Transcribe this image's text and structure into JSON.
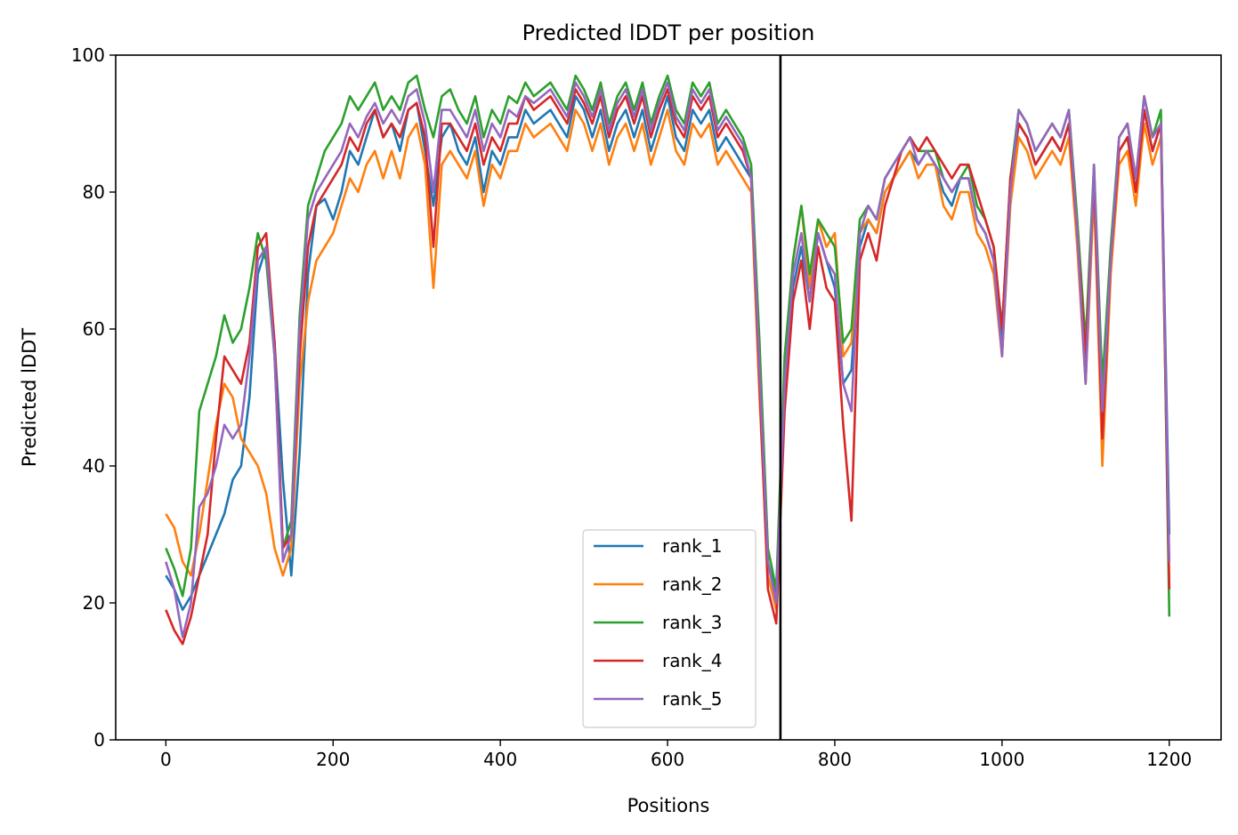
{
  "chart_data": {
    "type": "line",
    "title": "Predicted lDDT per position",
    "xlabel": "Positions",
    "ylabel": "Predicted lDDT",
    "xlim": [
      -60,
      1262
    ],
    "ylim": [
      0,
      100
    ],
    "xticks": [
      0,
      200,
      400,
      600,
      800,
      1000,
      1200
    ],
    "yticks": [
      0,
      20,
      40,
      60,
      80,
      100
    ],
    "grid": false,
    "legend_position": "lower center",
    "vline": 735,
    "x": [
      0,
      10,
      20,
      30,
      40,
      50,
      60,
      70,
      80,
      90,
      100,
      110,
      120,
      130,
      140,
      150,
      160,
      170,
      180,
      190,
      200,
      210,
      220,
      230,
      240,
      250,
      260,
      270,
      280,
      290,
      300,
      310,
      320,
      330,
      340,
      350,
      360,
      370,
      380,
      390,
      400,
      410,
      420,
      430,
      440,
      450,
      460,
      470,
      480,
      490,
      500,
      510,
      520,
      530,
      540,
      550,
      560,
      570,
      580,
      590,
      600,
      610,
      620,
      630,
      640,
      650,
      660,
      670,
      680,
      690,
      700,
      710,
      720,
      730,
      740,
      750,
      760,
      770,
      780,
      790,
      800,
      810,
      820,
      830,
      840,
      850,
      860,
      870,
      880,
      890,
      900,
      910,
      920,
      930,
      940,
      950,
      960,
      970,
      980,
      990,
      1000,
      1010,
      1020,
      1030,
      1040,
      1050,
      1060,
      1070,
      1080,
      1090,
      1100,
      1110,
      1120,
      1130,
      1140,
      1150,
      1160,
      1170,
      1180,
      1190,
      1200
    ],
    "series": [
      {
        "name": "rank_1",
        "color": "#1f77b4",
        "values": [
          24,
          22,
          19,
          21,
          24,
          27,
          30,
          33,
          38,
          40,
          50,
          68,
          72,
          58,
          38,
          24,
          42,
          68,
          78,
          79,
          76,
          80,
          86,
          84,
          88,
          92,
          88,
          90,
          86,
          92,
          93,
          86,
          78,
          88,
          90,
          86,
          84,
          88,
          80,
          86,
          84,
          88,
          88,
          92,
          90,
          91,
          92,
          90,
          88,
          94,
          92,
          88,
          92,
          86,
          90,
          92,
          88,
          92,
          86,
          90,
          94,
          88,
          86,
          92,
          90,
          92,
          86,
          88,
          86,
          84,
          82,
          56,
          26,
          21,
          50,
          66,
          72,
          64,
          74,
          70,
          66,
          52,
          54,
          72,
          76,
          74,
          80,
          82,
          84,
          86,
          84,
          86,
          84,
          80,
          78,
          82,
          82,
          76,
          74,
          70,
          58,
          80,
          90,
          88,
          84,
          86,
          88,
          86,
          90,
          74,
          56,
          82,
          50,
          70,
          86,
          88,
          80,
          92,
          86,
          90,
          30
        ]
      },
      {
        "name": "rank_2",
        "color": "#ff7f0e",
        "values": [
          33,
          31,
          26,
          24,
          30,
          38,
          46,
          52,
          50,
          44,
          42,
          40,
          36,
          28,
          24,
          28,
          52,
          64,
          70,
          72,
          74,
          78,
          82,
          80,
          84,
          86,
          82,
          86,
          82,
          88,
          90,
          84,
          66,
          84,
          86,
          84,
          82,
          86,
          78,
          84,
          82,
          86,
          86,
          90,
          88,
          89,
          90,
          88,
          86,
          92,
          90,
          86,
          90,
          84,
          88,
          90,
          86,
          90,
          84,
          88,
          92,
          86,
          84,
          90,
          88,
          90,
          84,
          86,
          84,
          82,
          80,
          50,
          24,
          19,
          54,
          70,
          78,
          66,
          76,
          72,
          74,
          56,
          58,
          74,
          76,
          74,
          80,
          82,
          84,
          86,
          82,
          84,
          84,
          78,
          76,
          80,
          80,
          74,
          72,
          68,
          56,
          78,
          88,
          86,
          82,
          84,
          86,
          84,
          88,
          72,
          52,
          80,
          40,
          68,
          84,
          86,
          78,
          90,
          84,
          88,
          22
        ]
      },
      {
        "name": "rank_3",
        "color": "#2ca02c",
        "values": [
          28,
          25,
          21,
          28,
          48,
          52,
          56,
          62,
          58,
          60,
          66,
          74,
          70,
          56,
          28,
          32,
          62,
          78,
          82,
          86,
          88,
          90,
          94,
          92,
          94,
          96,
          92,
          94,
          92,
          96,
          97,
          92,
          88,
          94,
          95,
          92,
          90,
          94,
          88,
          92,
          90,
          94,
          93,
          96,
          94,
          95,
          96,
          94,
          92,
          97,
          95,
          92,
          96,
          90,
          94,
          96,
          92,
          96,
          90,
          94,
          97,
          92,
          90,
          96,
          94,
          96,
          90,
          92,
          90,
          88,
          84,
          58,
          28,
          22,
          56,
          70,
          78,
          68,
          76,
          74,
          72,
          58,
          60,
          76,
          78,
          76,
          82,
          84,
          86,
          88,
          86,
          86,
          86,
          82,
          80,
          82,
          84,
          78,
          76,
          72,
          60,
          82,
          92,
          90,
          86,
          88,
          90,
          88,
          92,
          76,
          58,
          84,
          52,
          72,
          88,
          90,
          82,
          94,
          88,
          92,
          18
        ]
      },
      {
        "name": "rank_4",
        "color": "#d62728",
        "values": [
          19,
          16,
          14,
          18,
          24,
          30,
          44,
          56,
          54,
          52,
          58,
          72,
          74,
          58,
          28,
          30,
          56,
          72,
          78,
          80,
          82,
          84,
          88,
          86,
          90,
          92,
          88,
          90,
          88,
          92,
          93,
          88,
          72,
          90,
          90,
          88,
          86,
          90,
          84,
          88,
          86,
          90,
          90,
          94,
          92,
          93,
          94,
          92,
          90,
          95,
          93,
          90,
          94,
          88,
          92,
          94,
          90,
          94,
          88,
          92,
          95,
          90,
          88,
          94,
          92,
          94,
          88,
          90,
          88,
          86,
          82,
          52,
          22,
          17,
          48,
          64,
          70,
          60,
          72,
          66,
          64,
          46,
          32,
          70,
          74,
          70,
          78,
          82,
          86,
          88,
          86,
          88,
          86,
          84,
          82,
          84,
          84,
          80,
          76,
          72,
          60,
          82,
          90,
          88,
          84,
          86,
          88,
          86,
          90,
          74,
          56,
          82,
          44,
          70,
          86,
          88,
          80,
          92,
          86,
          90,
          22
        ]
      },
      {
        "name": "rank_5",
        "color": "#9467bd",
        "values": [
          26,
          22,
          15,
          20,
          34,
          36,
          40,
          46,
          44,
          46,
          56,
          70,
          72,
          56,
          26,
          30,
          60,
          76,
          80,
          82,
          84,
          86,
          90,
          88,
          91,
          93,
          90,
          92,
          90,
          94,
          95,
          90,
          80,
          92,
          92,
          90,
          88,
          92,
          86,
          90,
          88,
          92,
          91,
          94,
          93,
          94,
          95,
          93,
          91,
          96,
          94,
          91,
          95,
          89,
          93,
          95,
          91,
          95,
          89,
          93,
          96,
          91,
          89,
          95,
          93,
          95,
          89,
          91,
          89,
          87,
          82,
          54,
          26,
          20,
          52,
          68,
          74,
          64,
          74,
          70,
          68,
          52,
          48,
          74,
          78,
          76,
          82,
          84,
          86,
          88,
          84,
          86,
          84,
          82,
          80,
          82,
          82,
          76,
          74,
          70,
          56,
          80,
          92,
          90,
          86,
          88,
          90,
          88,
          92,
          74,
          52,
          84,
          48,
          70,
          88,
          90,
          82,
          94,
          88,
          90,
          26
        ]
      }
    ]
  }
}
